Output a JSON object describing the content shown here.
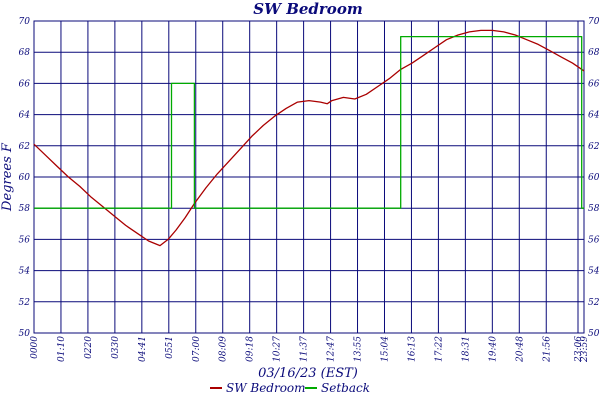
{
  "chart_data": {
    "type": "line",
    "title": "SW Bedroom",
    "xlabel": "03/16/23 (EST)",
    "ylabel": "Degrees F",
    "ylim": [
      50,
      70
    ],
    "y_ticks": [
      50,
      52,
      54,
      56,
      58,
      60,
      62,
      64,
      66,
      68,
      70
    ],
    "x_ticks": [
      "0000",
      "01:10",
      "0220",
      "0330",
      "04:41",
      "0551",
      "07:00",
      "08:09",
      "09:18",
      "10:27",
      "11:37",
      "12:47",
      "13:55",
      "15:04",
      "16:13",
      "17:22",
      "18:31",
      "19:40",
      "20:48",
      "21:56",
      "23:06",
      "23:59"
    ],
    "grid": true,
    "legend_position": "bottom",
    "colors": {
      "grid": "#0a0a7a",
      "text": "#0a0a7a",
      "sw_bedroom": "#aa0000",
      "setback": "#00aa00"
    },
    "series": [
      {
        "name": "SW Bedroom",
        "x": [
          0,
          0.5,
          1,
          1.5,
          2,
          2.5,
          3,
          3.5,
          4,
          4.5,
          5,
          5.5,
          5.85,
          6.2,
          6.6,
          7,
          7.5,
          8,
          8.5,
          9,
          9.5,
          10,
          10.5,
          11,
          11.5,
          12,
          12.5,
          12.8,
          13,
          13.5,
          14,
          14.5,
          15,
          15.5,
          16,
          16.5,
          17,
          17.5,
          18,
          18.5,
          19,
          19.5,
          20,
          20.5,
          21,
          21.5,
          22,
          22.5,
          23,
          23.5,
          24
        ],
        "values": [
          62.1,
          61.4,
          60.7,
          60.0,
          59.4,
          58.7,
          58.1,
          57.5,
          56.9,
          56.4,
          55.9,
          55.6,
          56.0,
          56.6,
          57.4,
          58.3,
          59.3,
          60.2,
          61.0,
          61.8,
          62.6,
          63.3,
          63.9,
          64.4,
          64.8,
          64.9,
          64.8,
          64.7,
          64.9,
          65.1,
          65.0,
          65.3,
          65.8,
          66.3,
          66.9,
          67.3,
          67.8,
          68.3,
          68.8,
          69.1,
          69.3,
          69.4,
          69.4,
          69.3,
          69.1,
          68.8,
          68.5,
          68.1,
          67.7,
          67.3,
          66.8
        ]
      },
      {
        "name": "Setback",
        "x": [
          0,
          6.0,
          6.0,
          7.0,
          7.0,
          16.0,
          16.0,
          23.9,
          23.9,
          24
        ],
        "values": [
          58,
          58,
          66,
          66,
          58,
          58,
          69,
          69,
          58,
          58
        ]
      }
    ]
  }
}
